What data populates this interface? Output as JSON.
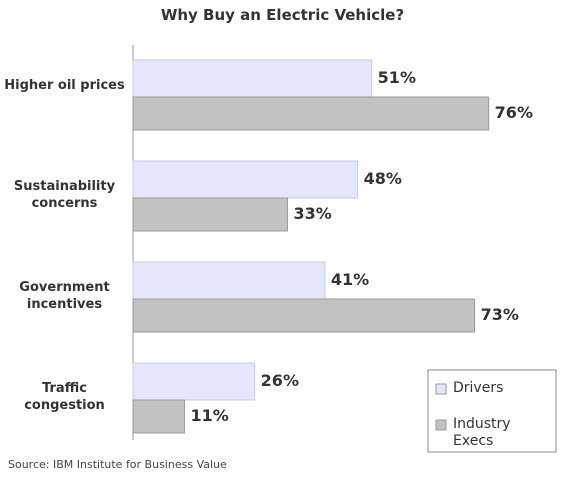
{
  "chart_data": {
    "type": "bar",
    "orientation": "horizontal",
    "title": "Why Buy an Electric Vehicle?",
    "categories": [
      "Higher oil prices",
      "Sustainability concerns",
      "Government incentives",
      "Traffic congestion"
    ],
    "series": [
      {
        "name": "Drivers",
        "color": "#e4e6fb",
        "values": [
          51,
          48,
          41,
          26
        ],
        "value_labels": [
          "51%",
          "48%",
          "41%",
          "26%"
        ]
      },
      {
        "name": "Industry Execs",
        "color": "#c2c2c2",
        "values": [
          76,
          33,
          73,
          11
        ],
        "value_labels": [
          "76%",
          "33%",
          "73%",
          "11%"
        ]
      }
    ],
    "legend": "bottom-right",
    "source": "Source:  IBM Institute for Business Value"
  }
}
